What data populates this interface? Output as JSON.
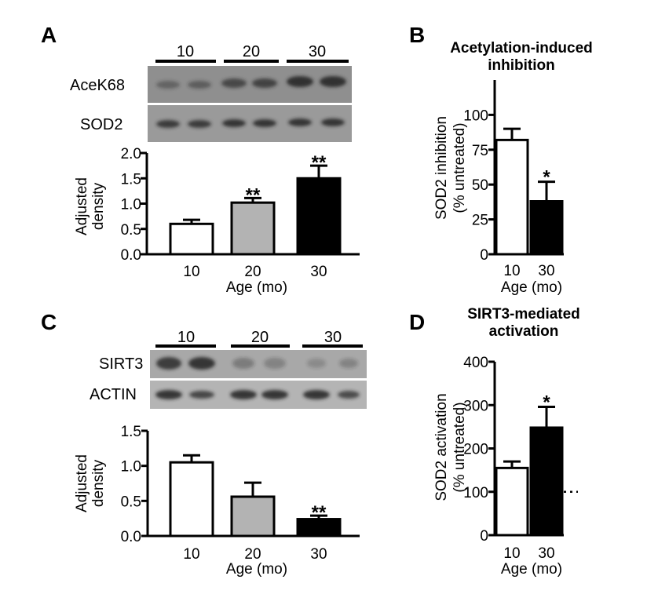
{
  "colors": {
    "bar_10": "#ffffff",
    "bar_20": "#b3b3b3",
    "bar_30": "#000000",
    "blot_background": "#8f8f8f",
    "band": "#202020"
  },
  "panels": {
    "A": {
      "letter": "A",
      "lane_groups": [
        "10",
        "20",
        "30"
      ],
      "blot_rows": [
        "AceK68",
        "SOD2"
      ]
    },
    "B": {
      "letter": "B"
    },
    "C": {
      "letter": "C",
      "lane_groups": [
        "10",
        "20",
        "30"
      ],
      "blot_rows": [
        "SIRT3",
        "ACTIN"
      ]
    },
    "D": {
      "letter": "D"
    }
  },
  "chart_data": [
    {
      "panel": "A",
      "type": "bar",
      "title": "",
      "xlabel": "Age (mo)",
      "ylabel": "Adjusted\ndensity",
      "categories": [
        "10",
        "20",
        "30"
      ],
      "values": [
        0.6,
        1.02,
        1.5
      ],
      "errors": [
        0.08,
        0.09,
        0.25
      ],
      "significance": [
        "",
        "**",
        "**"
      ],
      "ylim": [
        0,
        2.0
      ],
      "yticks": [
        "0.0",
        "0.5",
        "1.0",
        "1.5",
        "2.0"
      ],
      "grid": false
    },
    {
      "panel": "B",
      "type": "bar",
      "title": "Acetylation-induced\ninhibition",
      "xlabel": "Age (mo)",
      "ylabel": "SOD2 inhibition\n(% untreated)",
      "categories": [
        "10",
        "30"
      ],
      "values": [
        82,
        38
      ],
      "errors": [
        8,
        14
      ],
      "significance": [
        "",
        "*"
      ],
      "ylim": [
        0,
        125
      ],
      "yticks": [
        "0",
        "25",
        "50",
        "75",
        "100"
      ],
      "grid": false
    },
    {
      "panel": "C",
      "type": "bar",
      "title": "",
      "xlabel": "Age (mo)",
      "ylabel": "Adjusted\ndensity",
      "categories": [
        "10",
        "20",
        "30"
      ],
      "values": [
        1.05,
        0.56,
        0.24
      ],
      "errors": [
        0.1,
        0.2,
        0.05
      ],
      "significance": [
        "",
        "",
        "**"
      ],
      "ylim": [
        0,
        1.5
      ],
      "yticks": [
        "0.0",
        "0.5",
        "1.0",
        "1.5"
      ],
      "grid": false
    },
    {
      "panel": "D",
      "type": "bar",
      "title": "SIRT3-mediated\nactivation",
      "xlabel": "Age (mo)",
      "ylabel": "SOD2 activation\n(% untreated)",
      "categories": [
        "10",
        "30"
      ],
      "values": [
        155,
        248
      ],
      "errors": [
        15,
        48
      ],
      "significance": [
        "",
        "*"
      ],
      "ylim": [
        0,
        400
      ],
      "yticks": [
        "0",
        "100",
        "200",
        "300",
        "400"
      ],
      "reference_line": 100,
      "grid": false
    }
  ]
}
